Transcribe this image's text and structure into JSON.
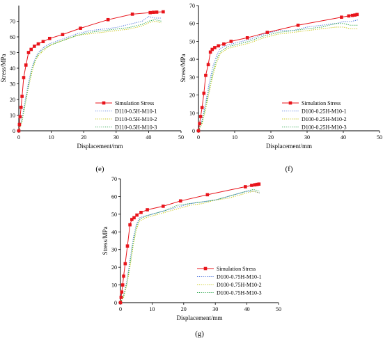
{
  "chart_data": [
    {
      "type": "line",
      "panel_label": "(e)",
      "xlabel": "Displacement/mm",
      "ylabel": "Stress/MPa",
      "xlim": [
        0,
        50
      ],
      "ylim": [
        0,
        80
      ],
      "xticks": [
        0,
        10,
        20,
        30,
        40,
        50
      ],
      "yticks": [
        0,
        10,
        20,
        30,
        40,
        50,
        60,
        70
      ],
      "legend_position": "lower-right",
      "series": [
        {
          "name": "Simulation Stress",
          "color": "#e8141b",
          "style": "solid",
          "marker": "square",
          "x": [
            0,
            0.2,
            0.4,
            0.7,
            1.0,
            1.5,
            2.2,
            3.0,
            3.8,
            4.8,
            6.0,
            7.5,
            9.5,
            13.5,
            19,
            27.5,
            35,
            40.5,
            41.5,
            42.5,
            44.5
          ],
          "y": [
            0,
            4,
            9,
            15,
            22,
            34,
            42,
            50,
            52,
            54,
            55.5,
            57,
            59,
            61.5,
            65.5,
            71,
            74.5,
            75.5,
            75.7,
            75.8,
            76
          ]
        },
        {
          "name": "D110-0.5H-M10-1",
          "color": "#5b7fe0",
          "style": "dotted",
          "x": [
            0,
            1,
            2,
            3,
            4,
            5,
            6,
            8,
            10,
            14,
            18,
            22,
            26,
            30,
            34,
            38,
            40,
            42,
            44
          ],
          "y": [
            0,
            8,
            20,
            31,
            40,
            46,
            50,
            54,
            56,
            59,
            62,
            64,
            65,
            66,
            68,
            70,
            73,
            72,
            72
          ]
        },
        {
          "name": "D110-0.5H-M10-2",
          "color": "#c9c91a",
          "style": "dotted",
          "x": [
            0,
            1,
            2,
            3,
            4,
            5,
            6,
            8,
            10,
            14,
            18,
            22,
            26,
            30,
            34,
            38,
            40,
            42,
            44
          ],
          "y": [
            0,
            6,
            17,
            28,
            37,
            44,
            48,
            52,
            55,
            58,
            61,
            62,
            63,
            64,
            65,
            67,
            69,
            70,
            69
          ]
        },
        {
          "name": "D110-0.5H-M10-3",
          "color": "#2fa84f",
          "style": "dotted",
          "x": [
            0,
            1,
            2,
            3,
            4,
            5,
            6,
            8,
            10,
            14,
            18,
            22,
            26,
            30,
            34,
            38,
            40,
            42,
            44
          ],
          "y": [
            0,
            7,
            18,
            29,
            39,
            45,
            49,
            53,
            55,
            58,
            61,
            63,
            64,
            65,
            66,
            68,
            70,
            71,
            70
          ]
        }
      ]
    },
    {
      "type": "line",
      "panel_label": "(f)",
      "xlabel": "Displacement/mm",
      "ylabel": "Stress/MPa",
      "xlim": [
        0,
        50
      ],
      "ylim": [
        0,
        70
      ],
      "xticks": [
        0,
        10,
        20,
        30,
        40,
        50
      ],
      "yticks": [
        0,
        10,
        20,
        30,
        40,
        50,
        60,
        70
      ],
      "legend_position": "lower-right",
      "series": [
        {
          "name": "Simulation Stress",
          "color": "#e8141b",
          "style": "solid",
          "marker": "square",
          "x": [
            0,
            0.3,
            0.6,
            1.0,
            1.5,
            2.0,
            2.7,
            3.3,
            3.8,
            4.5,
            5.5,
            7.0,
            9.0,
            13.5,
            19,
            27.5,
            39.5,
            41.5,
            42.5,
            43.2,
            43.8
          ],
          "y": [
            0,
            4,
            8,
            13,
            21,
            31,
            37,
            44,
            45.5,
            46.5,
            47.5,
            48.5,
            50,
            52,
            55,
            59,
            63.5,
            64.2,
            64.5,
            64.7,
            65
          ]
        },
        {
          "name": "D100-0.25H-M10-1",
          "color": "#5b7fe0",
          "style": "dotted",
          "x": [
            0,
            1,
            2,
            3,
            4,
            5,
            6,
            8,
            10,
            14,
            18,
            22,
            26,
            30,
            34,
            38,
            40,
            42,
            44
          ],
          "y": [
            0,
            6,
            16,
            27,
            36,
            42,
            46,
            48,
            49,
            51,
            54,
            56,
            56,
            58,
            59,
            60,
            61,
            61,
            62
          ]
        },
        {
          "name": "D100-0.25H-M10-2",
          "color": "#c9c91a",
          "style": "dotted",
          "x": [
            0,
            1,
            2,
            3,
            4,
            5,
            6,
            8,
            10,
            14,
            18,
            22,
            26,
            30,
            34,
            38,
            40,
            42,
            44
          ],
          "y": [
            0,
            4,
            12,
            22,
            31,
            38,
            43,
            46,
            47,
            49,
            52,
            54,
            55,
            56,
            57,
            58,
            58,
            57,
            57
          ]
        },
        {
          "name": "D100-0.25H-M10-3",
          "color": "#2fa84f",
          "style": "dotted",
          "x": [
            0,
            1,
            2,
            3,
            4,
            5,
            6,
            8,
            10,
            14,
            18,
            22,
            26,
            30,
            34,
            38,
            40,
            42,
            44
          ],
          "y": [
            0,
            5,
            14,
            24,
            33,
            40,
            44,
            47,
            48,
            50,
            53,
            55,
            56,
            57,
            58,
            60,
            60,
            59,
            59
          ]
        }
      ]
    },
    {
      "type": "line",
      "panel_label": "(g)",
      "xlabel": "Displacement/mm",
      "ylabel": "Stress/MPa",
      "xlim": [
        0,
        50
      ],
      "ylim": [
        0,
        70
      ],
      "xticks": [
        0,
        10,
        20,
        30,
        40,
        50
      ],
      "yticks": [
        0,
        10,
        20,
        30,
        40,
        50,
        60,
        70
      ],
      "legend_position": "lower-right",
      "series": [
        {
          "name": "Simulation Stress",
          "color": "#e8141b",
          "style": "solid",
          "marker": "square",
          "x": [
            0,
            0.2,
            0.4,
            0.7,
            1.0,
            1.5,
            2.2,
            3.0,
            3.6,
            4.3,
            5.2,
            6.5,
            8.5,
            13.5,
            19,
            27.5,
            39.5,
            41.5,
            42.5,
            43.2,
            43.8
          ],
          "y": [
            0,
            3,
            6,
            10,
            15,
            22,
            32,
            44,
            47,
            48,
            49.5,
            51,
            52.5,
            54.5,
            57.5,
            61,
            65.5,
            66.3,
            66.6,
            66.8,
            67
          ]
        },
        {
          "name": "D100-0.75H-M10-1",
          "color": "#5b7fe0",
          "style": "dotted",
          "x": [
            0,
            1,
            2,
            3,
            4,
            5,
            6,
            8,
            10,
            14,
            18,
            22,
            26,
            30,
            34,
            38,
            40,
            42,
            44
          ],
          "y": [
            0,
            4,
            12,
            24,
            36,
            44,
            48,
            49,
            50,
            52,
            54,
            56,
            57,
            58,
            60,
            62,
            63,
            63,
            62
          ]
        },
        {
          "name": "D100-0.75H-M10-2",
          "color": "#c9c91a",
          "style": "dotted",
          "x": [
            0,
            1,
            2,
            3,
            4,
            5,
            6,
            8,
            10,
            14,
            18,
            22,
            26,
            30,
            34,
            38,
            40,
            42,
            44
          ],
          "y": [
            0,
            3,
            10,
            20,
            32,
            41,
            46,
            48,
            49,
            51,
            53,
            55,
            56,
            58,
            59,
            61,
            62,
            63,
            62
          ]
        },
        {
          "name": "D100-0.75H-M10-3",
          "color": "#2fa84f",
          "style": "dotted",
          "x": [
            0,
            1,
            2,
            3,
            4,
            5,
            6,
            8,
            10,
            14,
            18,
            22,
            26,
            30,
            34,
            38,
            40,
            42,
            44
          ],
          "y": [
            0,
            4,
            11,
            22,
            34,
            43,
            47,
            49,
            50,
            52,
            55,
            56,
            57,
            58,
            60,
            62,
            63,
            64,
            63
          ]
        }
      ]
    }
  ]
}
